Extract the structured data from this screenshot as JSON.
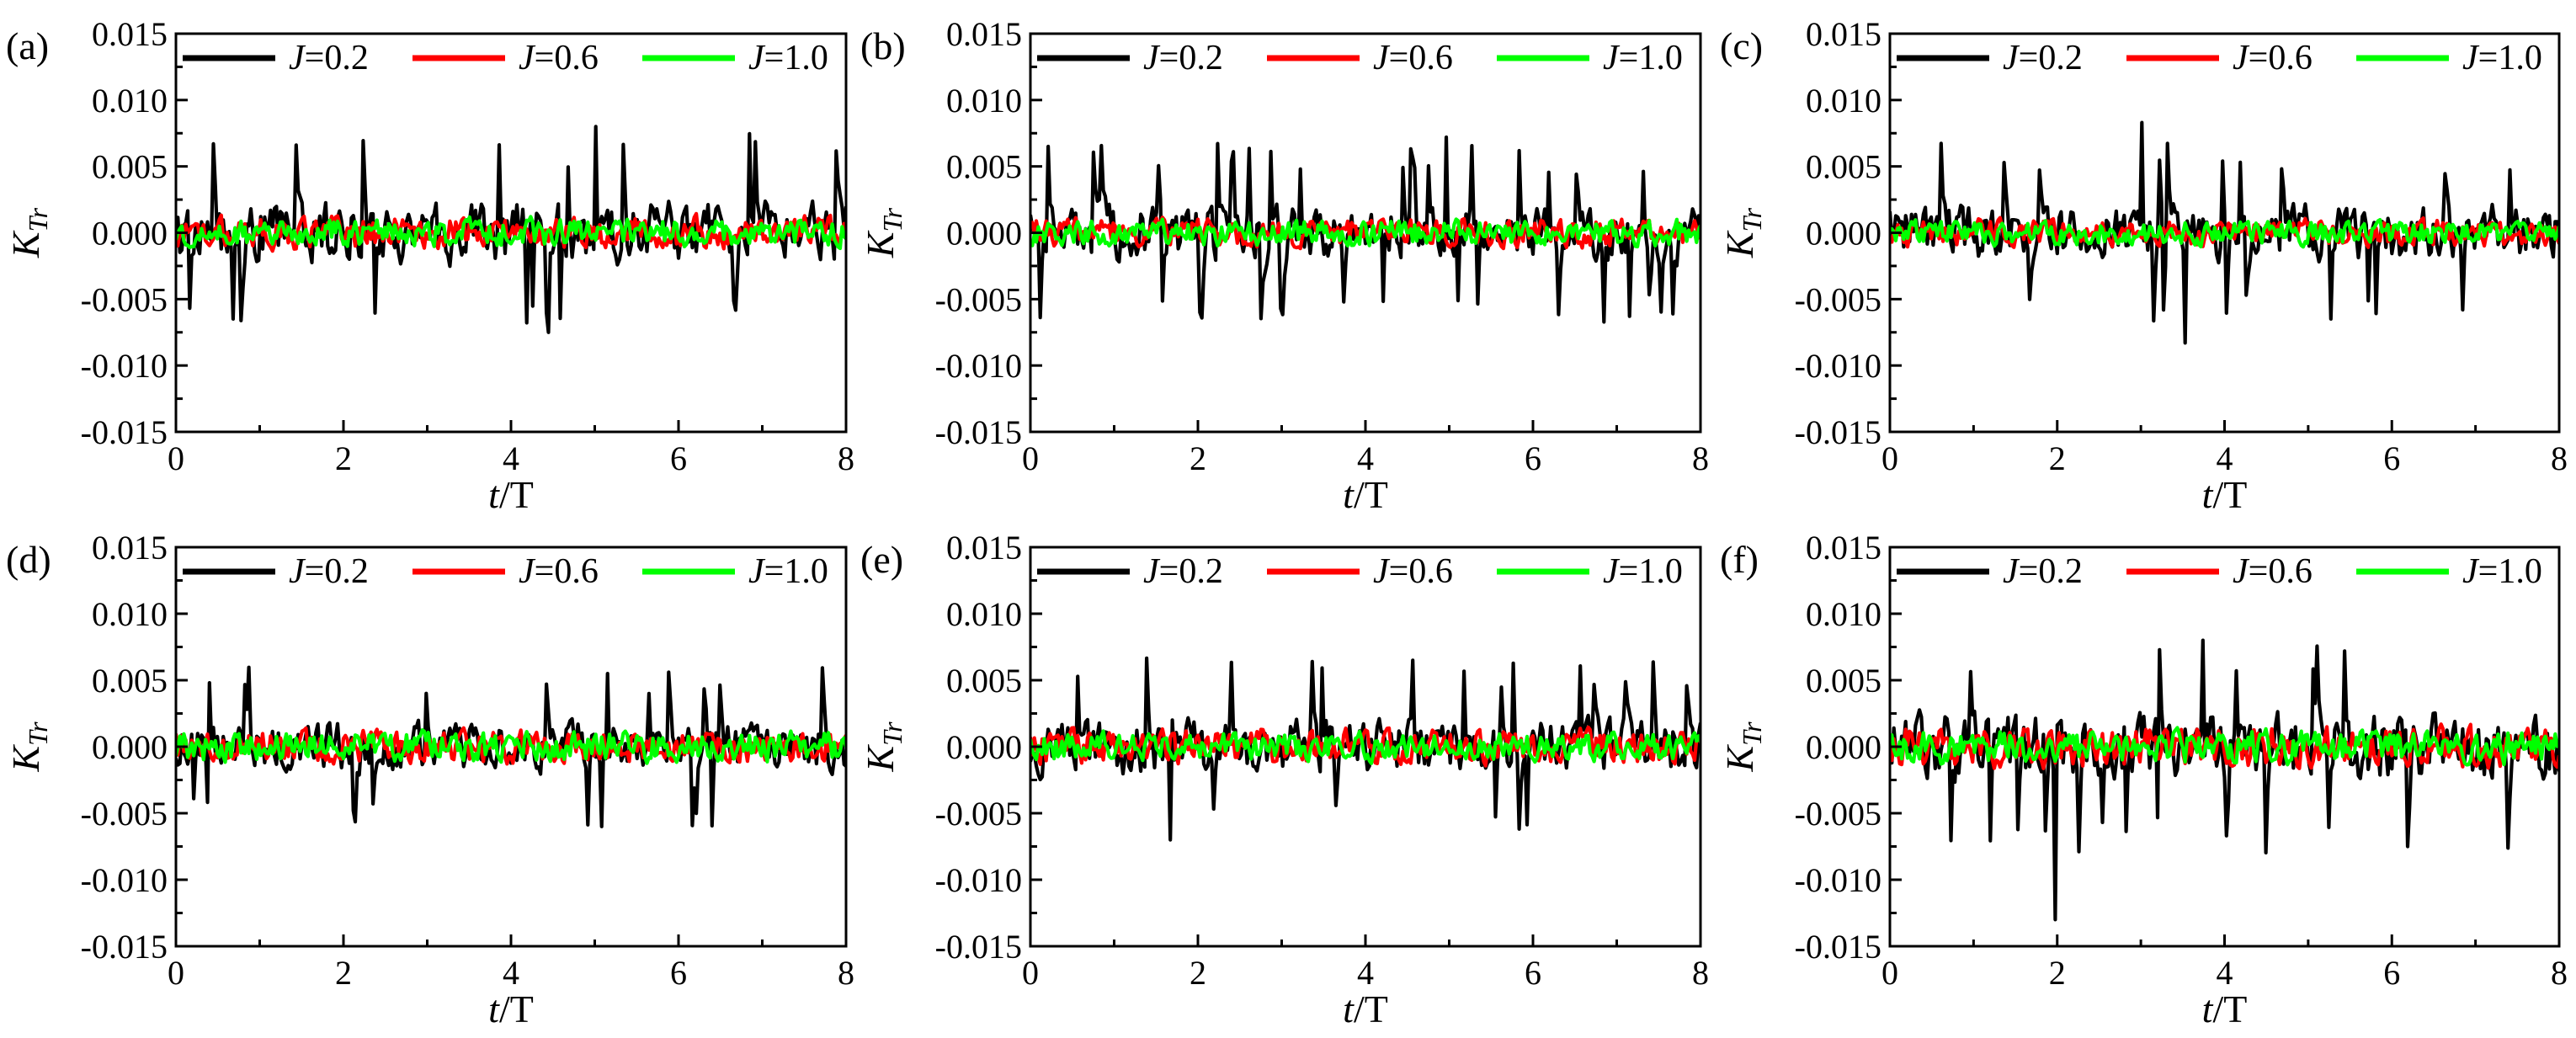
{
  "chart_data": {
    "type": "line",
    "layout": "2x3 grid",
    "xlabel": "t/T",
    "ylabel": "K_Tr",
    "xlim": [
      0,
      8
    ],
    "ylim": [
      -0.015,
      0.015
    ],
    "x_ticks": [
      0,
      2,
      4,
      6,
      8
    ],
    "y_ticks": [
      -0.015,
      -0.01,
      -0.005,
      0.0,
      0.005,
      0.01,
      0.015
    ],
    "x_tick_labels": [
      "0",
      "2",
      "4",
      "6",
      "8"
    ],
    "y_tick_labels": [
      "-0.015",
      "-0.010",
      "-0.005",
      "0.000",
      "0.005",
      "0.010",
      "0.015"
    ],
    "legend_position": "top",
    "series_meta": [
      {
        "name": "J=0.2",
        "prefix": "J",
        "value": "=0.2",
        "color": "#000000"
      },
      {
        "name": "J=0.6",
        "prefix": "J",
        "value": "=0.6",
        "color": "#ff0000"
      },
      {
        "name": "J=1.0",
        "prefix": "J",
        "value": "=1.0",
        "color": "#00ff00"
      }
    ],
    "panels": [
      {
        "label": "(a)",
        "amplitudes": [
          0.003,
          0.0016,
          0.0014
        ],
        "extremes": {
          "max": 0.008,
          "min": -0.0075
        }
      },
      {
        "label": "(b)",
        "amplitudes": [
          0.0027,
          0.0014,
          0.0013
        ],
        "extremes": {
          "max": 0.0072,
          "min": -0.006
        }
      },
      {
        "label": "(c)",
        "amplitudes": [
          0.0027,
          0.0013,
          0.0012
        ],
        "extremes": {
          "max": 0.0083,
          "min": -0.0083
        }
      },
      {
        "label": "(d)",
        "amplitudes": [
          0.0024,
          0.0016,
          0.0015
        ],
        "extremes": {
          "max": 0.0055,
          "min": -0.006
        }
      },
      {
        "label": "(e)",
        "amplitudes": [
          0.0027,
          0.0017,
          0.0014
        ],
        "extremes": {
          "max": 0.0065,
          "min": -0.007
        }
      },
      {
        "label": "(f)",
        "amplitudes": [
          0.0032,
          0.002,
          0.0017
        ],
        "extremes": {
          "max": 0.008,
          "min": -0.013
        }
      }
    ]
  }
}
